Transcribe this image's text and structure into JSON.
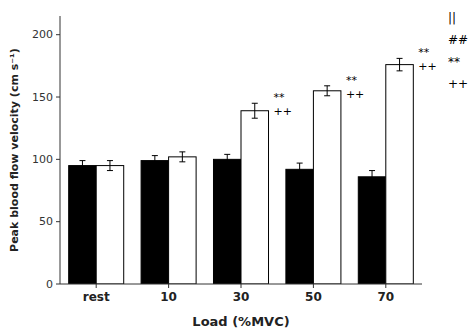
{
  "chart_data": {
    "type": "bar",
    "xlabel": "Load (%MVC)",
    "ylabel": "Peak blood flow velocity (cm s⁻¹)",
    "categories": [
      "rest",
      "10",
      "30",
      "50",
      "70"
    ],
    "series": [
      {
        "color": "#000000",
        "values": [
          95,
          99,
          100,
          92,
          86
        ],
        "errors": [
          4,
          4,
          4,
          5,
          5
        ]
      },
      {
        "color": "#ffffff",
        "values": [
          95,
          102,
          139,
          155,
          176
        ],
        "errors": [
          4,
          4,
          6,
          4,
          5
        ]
      }
    ],
    "annotations": [
      {
        "text": "**",
        "category": "30"
      },
      {
        "text": "++",
        "category": "30"
      },
      {
        "text": "**",
        "category": "50"
      },
      {
        "text": "++",
        "category": "50"
      },
      {
        "text": "**",
        "category": "70"
      },
      {
        "text": "++",
        "category": "70"
      },
      {
        "text": "||"
      },
      {
        "text": "##"
      },
      {
        "text": "**"
      },
      {
        "text": "++"
      }
    ],
    "ylim": [
      0,
      215
    ],
    "yticks": [
      0,
      50,
      100,
      150,
      200
    ],
    "grid": false
  }
}
